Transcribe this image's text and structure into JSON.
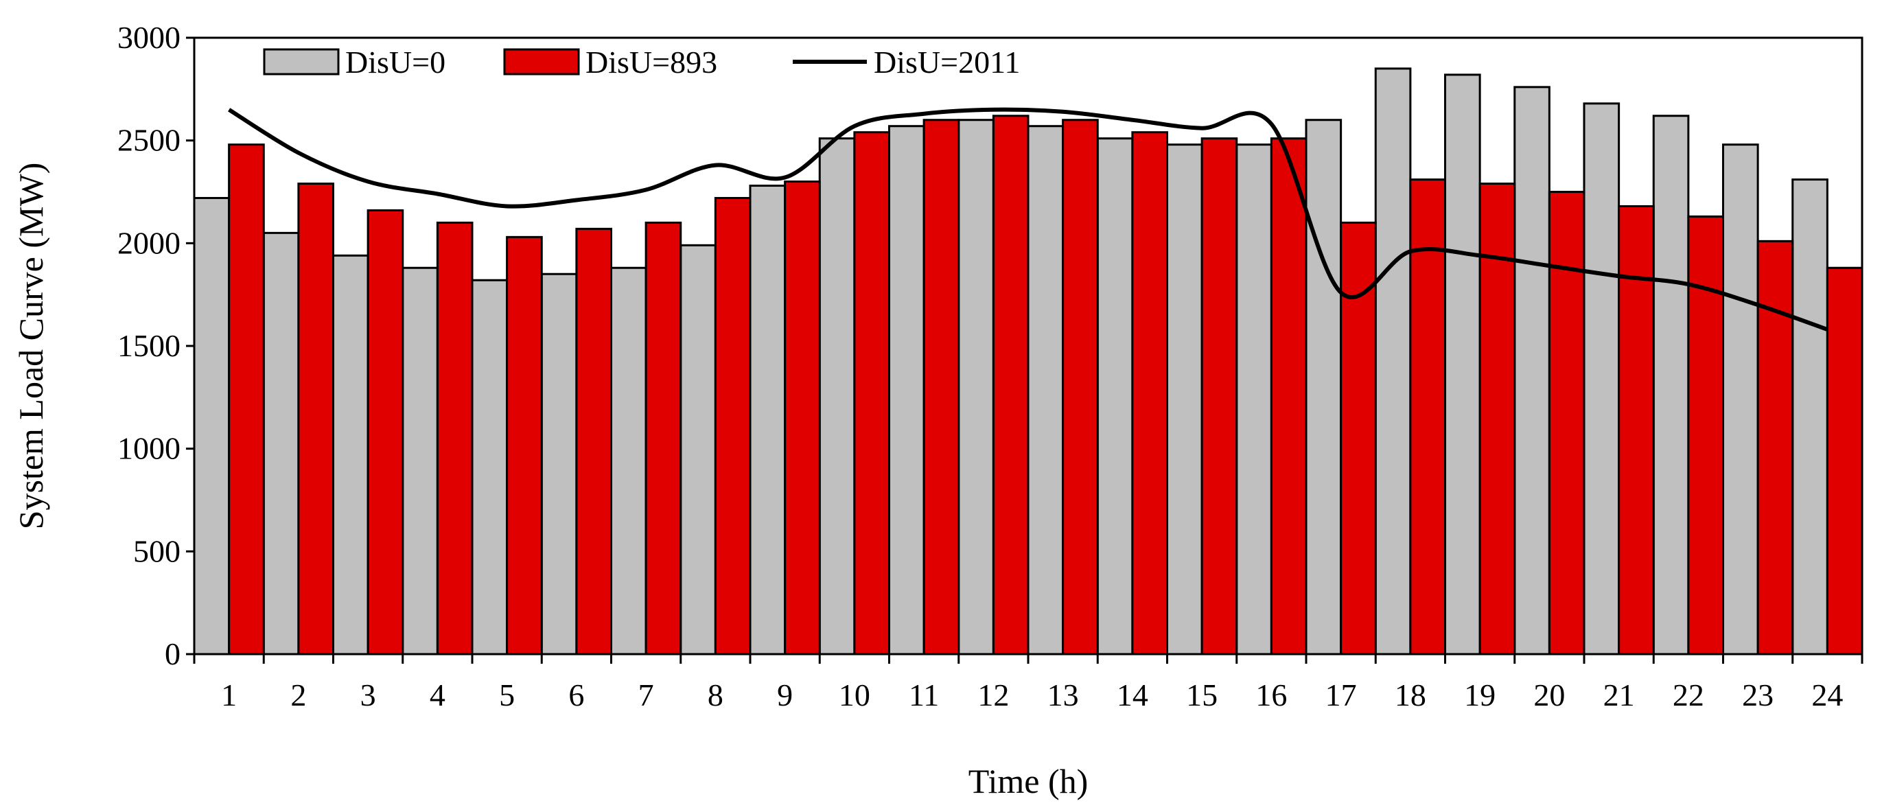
{
  "chart_data": {
    "type": "bar",
    "xlabel": "Time (h)",
    "ylabel": "System Load Curve (MW)",
    "ylim": [
      0,
      3000
    ],
    "yticks": [
      0,
      500,
      1000,
      1500,
      2000,
      2500,
      3000
    ],
    "categories": [
      "1",
      "2",
      "3",
      "4",
      "5",
      "6",
      "7",
      "8",
      "9",
      "10",
      "11",
      "12",
      "13",
      "14",
      "15",
      "16",
      "17",
      "18",
      "19",
      "20",
      "21",
      "22",
      "23",
      "24"
    ],
    "grid": false,
    "legend_position": "top-left",
    "series": [
      {
        "name": "DisU=0",
        "kind": "bar",
        "color": "#c0c0c0",
        "values": [
          2220,
          2050,
          1940,
          1880,
          1820,
          1850,
          1880,
          1990,
          2280,
          2510,
          2570,
          2600,
          2570,
          2510,
          2480,
          2480,
          2600,
          2850,
          2820,
          2760,
          2680,
          2620,
          2480,
          2310
        ]
      },
      {
        "name": "DisU=893",
        "kind": "bar",
        "color": "#e00000",
        "values": [
          2480,
          2290,
          2160,
          2100,
          2030,
          2070,
          2100,
          2220,
          2300,
          2540,
          2600,
          2620,
          2600,
          2540,
          2510,
          2510,
          2100,
          2310,
          2290,
          2250,
          2180,
          2130,
          2010,
          1880
        ]
      },
      {
        "name": "DisU=2011",
        "kind": "line",
        "color": "#000000",
        "values": [
          2650,
          2440,
          2300,
          2240,
          2180,
          2210,
          2260,
          2380,
          2320,
          2570,
          2630,
          2650,
          2640,
          2600,
          2560,
          2580,
          1760,
          1960,
          1940,
          1890,
          1840,
          1800,
          1700,
          1580
        ]
      }
    ]
  }
}
